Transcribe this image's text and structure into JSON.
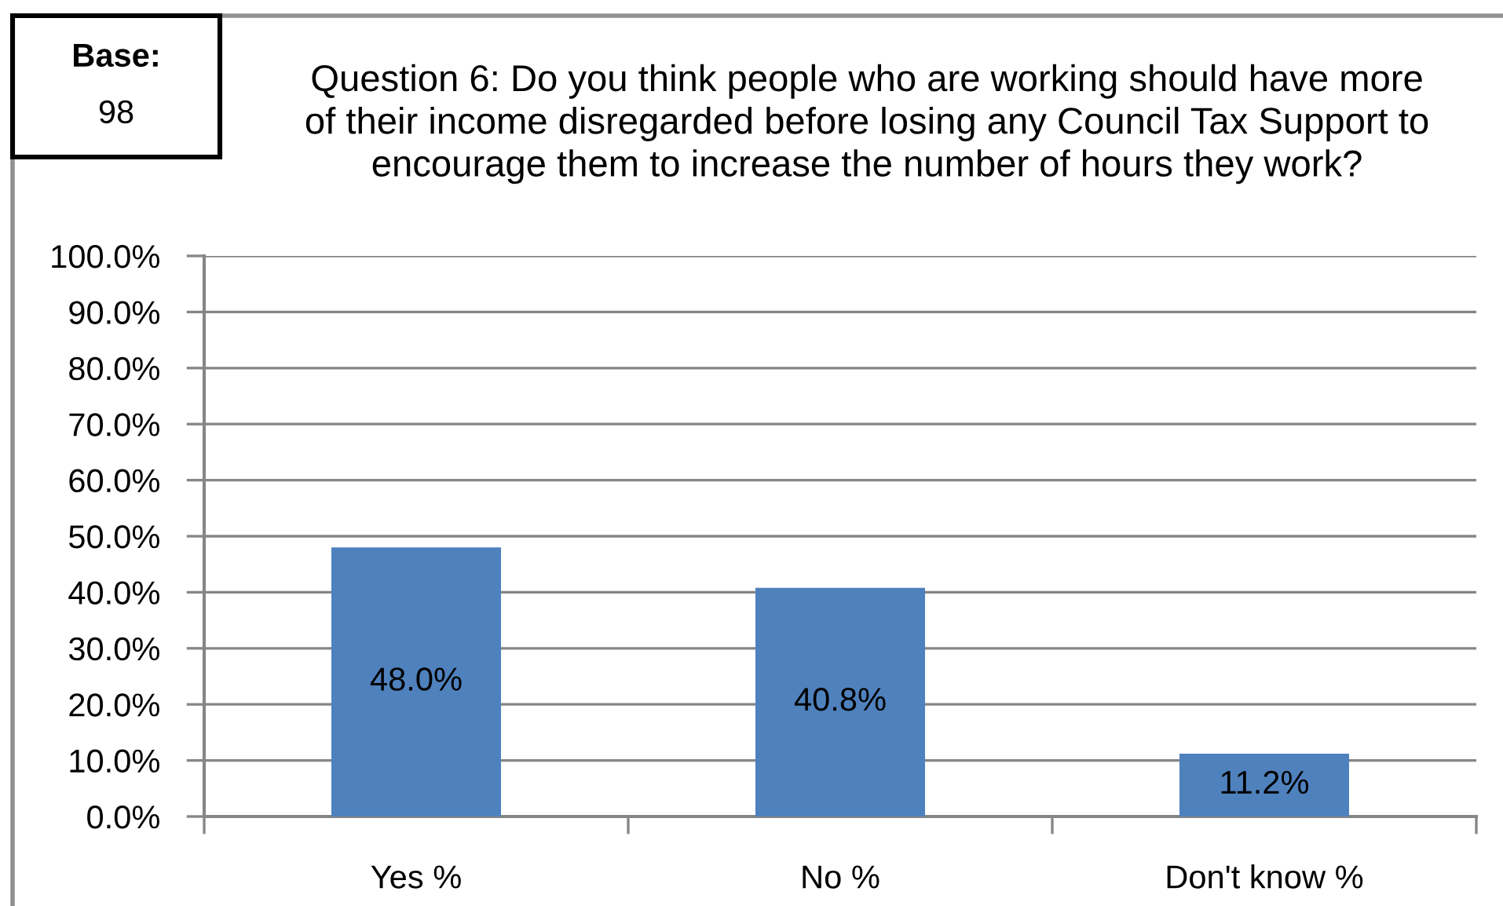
{
  "chart_data": {
    "type": "bar",
    "title": "Question 6: Do you think people who are working should have more\nof their income disregarded before losing any Council Tax Support to\nencourage them to increase the number of hours they work?",
    "annotations": [
      "Base:",
      "98"
    ],
    "categories": [
      "Yes %",
      "No %",
      "Don't know %"
    ],
    "values": [
      48.0,
      40.8,
      11.2
    ],
    "color": "#4f81bd",
    "value_labels": [
      "48.0%",
      "40.8%",
      "11.2%"
    ],
    "ylim": [
      0,
      100
    ],
    "yticks": [
      {
        "value": 0,
        "label": "0.0%"
      },
      {
        "value": 10,
        "label": "10.0%"
      },
      {
        "value": 20,
        "label": "20.0%"
      },
      {
        "value": 30,
        "label": "30.0%"
      },
      {
        "value": 40,
        "label": "40.0%"
      },
      {
        "value": 50,
        "label": "50.0%"
      },
      {
        "value": 60,
        "label": "60.0%"
      },
      {
        "value": 70,
        "label": "70.0%"
      },
      {
        "value": 80,
        "label": "80.0%"
      },
      {
        "value": 90,
        "label": "90.0%"
      },
      {
        "value": 100,
        "label": "100.0%"
      }
    ],
    "grid": "y"
  }
}
